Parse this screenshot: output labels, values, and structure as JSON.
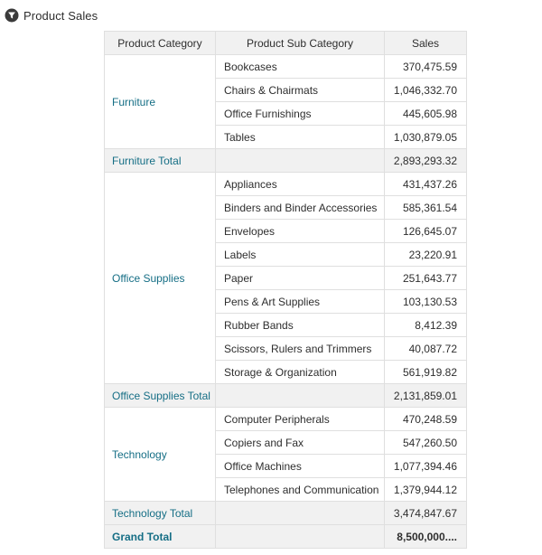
{
  "header": {
    "title": "Product Sales",
    "icon": "funnel-icon"
  },
  "table": {
    "columns": [
      "Product Category",
      "Product Sub Category",
      "Sales"
    ],
    "groups": [
      {
        "category": "Furniture",
        "rows": [
          {
            "sub": "Bookcases",
            "sales": "370,475.59"
          },
          {
            "sub": "Chairs & Chairmats",
            "sales": "1,046,332.70"
          },
          {
            "sub": "Office Furnishings",
            "sales": "445,605.98"
          },
          {
            "sub": "Tables",
            "sales": "1,030,879.05"
          }
        ],
        "total_label": "Furniture Total",
        "total_sales": "2,893,293.32"
      },
      {
        "category": "Office Supplies",
        "rows": [
          {
            "sub": "Appliances",
            "sales": "431,437.26"
          },
          {
            "sub": "Binders and Binder Accessories",
            "sales": "585,361.54"
          },
          {
            "sub": "Envelopes",
            "sales": "126,645.07"
          },
          {
            "sub": "Labels",
            "sales": "23,220.91"
          },
          {
            "sub": "Paper",
            "sales": "251,643.77"
          },
          {
            "sub": "Pens & Art Supplies",
            "sales": "103,130.53"
          },
          {
            "sub": "Rubber Bands",
            "sales": "8,412.39"
          },
          {
            "sub": "Scissors, Rulers and Trimmers",
            "sales": "40,087.72"
          },
          {
            "sub": "Storage & Organization",
            "sales": "561,919.82"
          }
        ],
        "total_label": "Office Supplies Total",
        "total_sales": "2,131,859.01"
      },
      {
        "category": "Technology",
        "rows": [
          {
            "sub": "Computer Peripherals",
            "sales": "470,248.59"
          },
          {
            "sub": "Copiers and Fax",
            "sales": "547,260.50"
          },
          {
            "sub": "Office Machines",
            "sales": "1,077,394.46"
          },
          {
            "sub": "Telephones and Communication",
            "sales": "1,379,944.12"
          }
        ],
        "total_label": "Technology Total",
        "total_sales": "3,474,847.67"
      }
    ],
    "grand_total": {
      "label": "Grand Total",
      "sales": "8,500,000...."
    }
  },
  "colors": {
    "link_text": "#156e85",
    "header_bg": "#f1f1f1",
    "total_row_bg": "#f1f1f1",
    "grid_border": "#dfdfdf",
    "body_text": "#2e2e2e",
    "icon_fill": "#3a3a3a"
  }
}
